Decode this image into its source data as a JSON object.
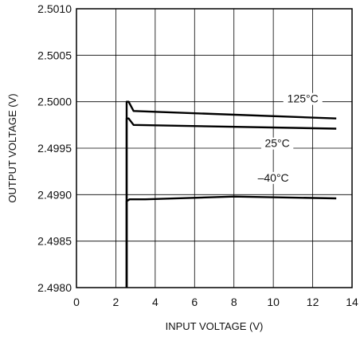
{
  "chart_data": {
    "type": "line",
    "xlabel": "INPUT VOLTAGE (V)",
    "ylabel": "OUTPUT VOLTAGE (V)",
    "xlim": [
      0,
      14
    ],
    "ylim": [
      2.498,
      2.501
    ],
    "xticks": [
      "0",
      "2",
      "4",
      "6",
      "8",
      "10",
      "12",
      "14"
    ],
    "yticks": [
      "2.4980",
      "2.4985",
      "2.4990",
      "2.4995",
      "2.5000",
      "2.5005",
      "2.5010"
    ],
    "grid": true,
    "series": [
      {
        "name": "125°C",
        "x": [
          2.55,
          2.55,
          2.65,
          2.9,
          13.2
        ],
        "y": [
          2.498,
          2.5,
          2.5,
          2.4999,
          2.49982
        ]
      },
      {
        "name": "25°C",
        "x": [
          2.55,
          2.55,
          2.65,
          2.9,
          13.2
        ],
        "y": [
          2.498,
          2.49982,
          2.49982,
          2.49975,
          2.49971
        ]
      },
      {
        "name": "–40°C",
        "x": [
          2.55,
          2.55,
          2.7,
          3.5,
          8.0,
          13.2
        ],
        "y": [
          2.498,
          2.49893,
          2.49895,
          2.49895,
          2.49898,
          2.49896
        ]
      }
    ],
    "annotations": [
      "125°C",
      "25°C",
      "–40°C"
    ]
  }
}
